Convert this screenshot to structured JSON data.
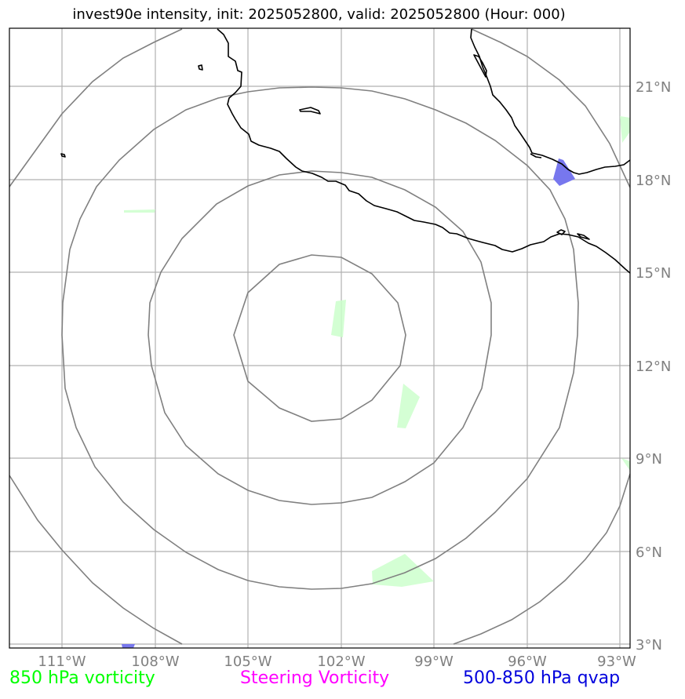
{
  "title": "invest90e intensity, init: 2025052800, valid: 2025052800 (Hour: 000)",
  "lon_labels": [
    "111°W",
    "108°W",
    "105°W",
    "102°W",
    "99°W",
    "96°W",
    "93°W"
  ],
  "lat_labels": [
    "21°N",
    "18°N",
    "15°N",
    "12°N",
    "9°N",
    "6°N",
    "3°N"
  ],
  "legend": [
    {
      "label": "850 hPa vorticity",
      "color": "#00ff00"
    },
    {
      "label": "Steering Vorticity",
      "color": "#ff00ff"
    },
    {
      "label": "500-850 hPa qvap",
      "color": "#0000dd"
    }
  ],
  "colors": {
    "gridline": "#b0b0b0",
    "range_ring": "#808080",
    "coastline": "#000000",
    "vorticity_fill": "#ccffcc",
    "qvap_fill": "#7777ee"
  }
}
